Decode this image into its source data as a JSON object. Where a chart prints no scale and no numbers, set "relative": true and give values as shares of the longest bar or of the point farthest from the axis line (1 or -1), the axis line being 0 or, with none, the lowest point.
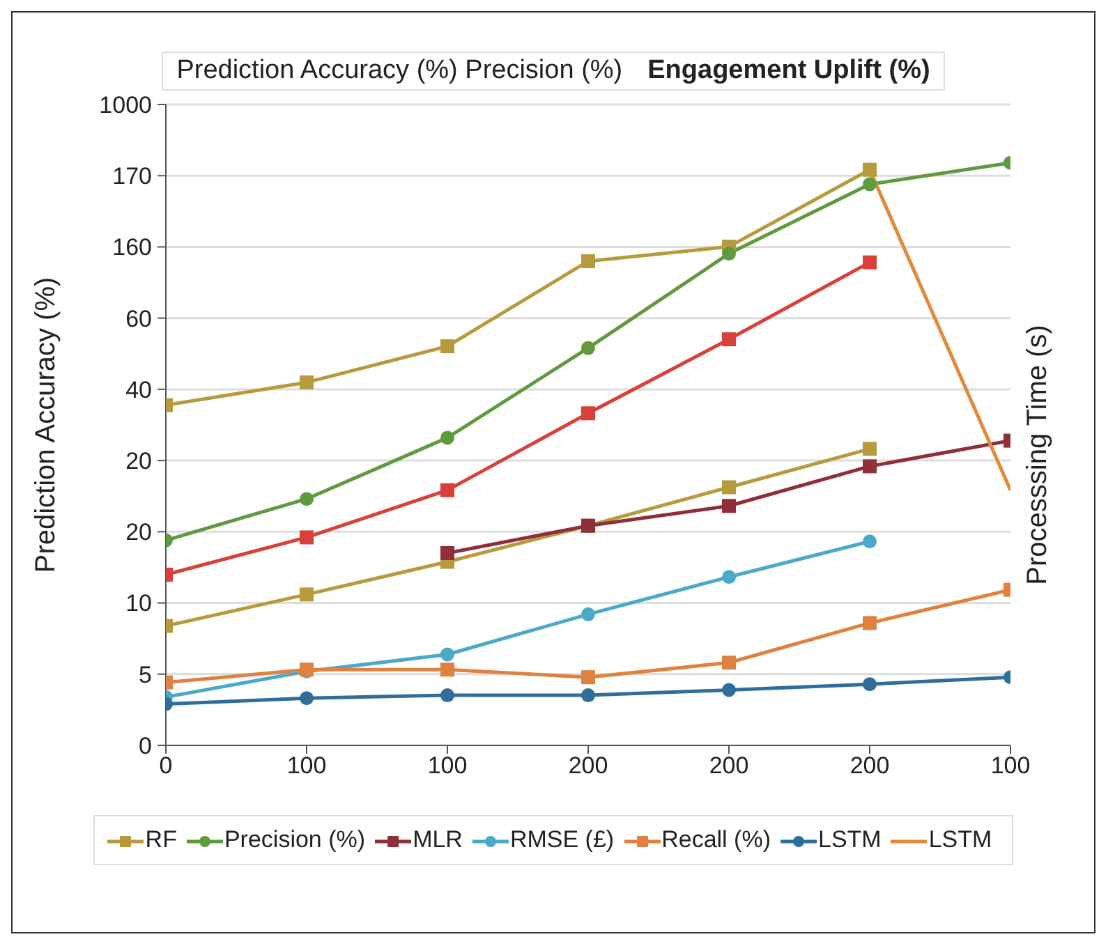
{
  "chart_data": {
    "type": "line",
    "title": "Prediction Accuracy (%) Precision (%)",
    "subtitle": "Engagement Uplift (%)",
    "ylabel": "Prediction Accuracy (%)",
    "y2label": "Processsing Time (s)",
    "categories": [
      "0",
      "100",
      "100",
      "200",
      "200",
      "200",
      "100"
    ],
    "relative": true,
    "annotations": [
      "0",
      "5",
      "10",
      "20",
      "20",
      "40",
      "60",
      "160",
      "170",
      "1000"
    ],
    "grid": "y",
    "legend": "bottom",
    "series": [
      {
        "name": "RF",
        "color": "#b89a3e",
        "marker": "square",
        "values": [
          0.584,
          0.623,
          0.685,
          0.831,
          0.856,
          0.988,
          null
        ]
      },
      {
        "name": "Precision (%)",
        "color": "#5f9a3f",
        "marker": "circle",
        "values": [
          0.352,
          0.423,
          0.528,
          0.682,
          0.844,
          0.963,
          1
        ]
      },
      {
        "color": "#d8403a",
        "marker": "square",
        "values": [
          0.293,
          0.357,
          0.438,
          0.57,
          0.697,
          0.829,
          null
        ]
      },
      {
        "color": "#b89a3e",
        "marker": "square",
        "values": [
          0.205,
          0.259,
          0.315,
          0.377,
          0.443,
          0.509,
          null
        ]
      },
      {
        "name": "MLR",
        "color": "#8e2f3a",
        "marker": "square",
        "values": [
          null,
          null,
          0.33,
          0.377,
          0.411,
          0.479,
          0.523
        ]
      },
      {
        "name": "RMSE (£)",
        "color": "#4aa9c9",
        "marker": "circle",
        "values": [
          0.083,
          0.127,
          0.156,
          0.225,
          0.289,
          0.35,
          null
        ]
      },
      {
        "name": "Recall (%)",
        "color": "#e0823f",
        "marker": "square",
        "values": [
          0.108,
          0.13,
          0.13,
          0.117,
          0.142,
          0.21,
          0.267
        ]
      },
      {
        "name": "LSTM",
        "color": "#2f6d9c",
        "marker": "circle",
        "values": [
          0.071,
          0.081,
          0.086,
          0.086,
          0.095,
          0.105,
          0.117
        ]
      },
      {
        "name": "LSTM",
        "color": "#e08a3a",
        "marker": "none",
        "values": [
          null,
          null,
          null,
          null,
          null,
          0.988,
          0.438
        ]
      }
    ]
  }
}
